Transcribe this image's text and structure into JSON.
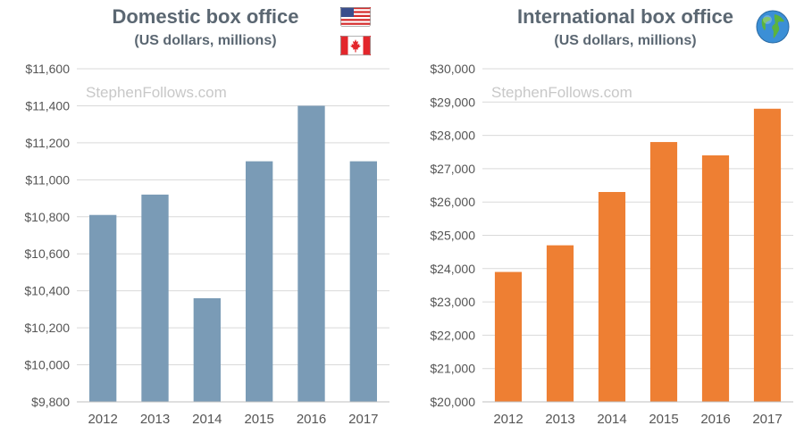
{
  "watermark": "StephenFollows.com",
  "colors": {
    "domestic_bar": "#7a9bb6",
    "international_bar": "#ee7f33",
    "grid": "#d9d9d9",
    "text": "#555555",
    "title": "#5b6772"
  },
  "icons": {
    "us_flag": "us-flag-icon",
    "canada_flag": "canada-flag-icon",
    "globe": "globe-icon"
  },
  "chart_data": [
    {
      "type": "bar",
      "title": "Domestic box office",
      "subtitle": "(US dollars, millions)",
      "categories": [
        "2012",
        "2013",
        "2014",
        "2015",
        "2016",
        "2017"
      ],
      "values": [
        10810,
        10920,
        10360,
        11100,
        11400,
        11100
      ],
      "ylim": [
        9800,
        11600
      ],
      "yticks": [
        9800,
        10000,
        10200,
        10400,
        10600,
        10800,
        11000,
        11200,
        11400,
        11600
      ],
      "ytick_labels": [
        "$9,800",
        "$10,000",
        "$10,200",
        "$10,400",
        "$10,600",
        "$10,800",
        "$11,000",
        "$11,200",
        "$11,400",
        "$11,600"
      ],
      "xlabel": "",
      "ylabel": "",
      "grid": true
    },
    {
      "type": "bar",
      "title": "International box office",
      "subtitle": "(US dollars, millions)",
      "categories": [
        "2012",
        "2013",
        "2014",
        "2015",
        "2016",
        "2017"
      ],
      "values": [
        23900,
        24700,
        26300,
        27800,
        27400,
        28800
      ],
      "ylim": [
        20000,
        30000
      ],
      "yticks": [
        20000,
        21000,
        22000,
        23000,
        24000,
        25000,
        26000,
        27000,
        28000,
        29000,
        30000
      ],
      "ytick_labels": [
        "$20,000",
        "$21,000",
        "$22,000",
        "$23,000",
        "$24,000",
        "$25,000",
        "$26,000",
        "$27,000",
        "$28,000",
        "$29,000",
        "$30,000"
      ],
      "xlabel": "",
      "ylabel": "",
      "grid": true
    }
  ]
}
